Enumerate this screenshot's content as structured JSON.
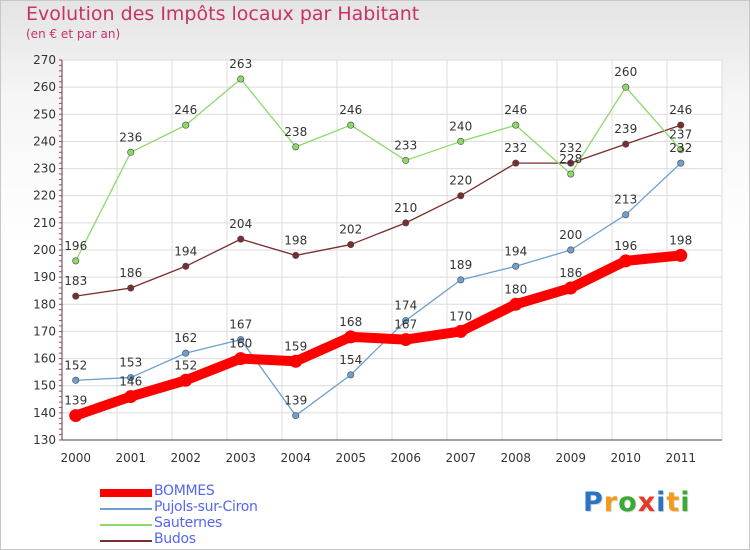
{
  "title": "Evolution des Impôts locaux par Habitant",
  "subtitle": "(en € et par an)",
  "logo": {
    "text": "Proxiti",
    "letter_colors": [
      "#2a73c7",
      "#f29a1b",
      "#3aaa35",
      "#e53a2a",
      "#2a73c7",
      "#f29a1b",
      "#3aaa35"
    ]
  },
  "chart_data": {
    "type": "line",
    "x": [
      "2000",
      "2001",
      "2002",
      "2003",
      "2004",
      "2005",
      "2006",
      "2007",
      "2008",
      "2009",
      "2010",
      "2011"
    ],
    "ylim": [
      130,
      270
    ],
    "yticks": [
      "130",
      "140",
      "150",
      "160",
      "170",
      "180",
      "190",
      "200",
      "210",
      "220",
      "230",
      "240",
      "250",
      "260",
      "270"
    ],
    "grid": true,
    "legend_position": "bottom-left",
    "series": [
      {
        "name": "BOMMES",
        "color": "#ff0000",
        "values": [
          139,
          146,
          152,
          160,
          159,
          168,
          167,
          170,
          180,
          186,
          196,
          198
        ],
        "labels": [
          "139",
          "146",
          "152",
          "160",
          "159",
          "168",
          "167",
          "170",
          "180",
          "186",
          "196",
          "198"
        ]
      },
      {
        "name": "Pujols-sur-Ciron",
        "color": "#6f9fd0",
        "values": [
          152,
          153,
          162,
          167,
          139,
          154,
          174,
          189,
          194,
          200,
          213,
          232
        ],
        "labels": [
          "152",
          "153",
          "162",
          "167",
          "139",
          "154",
          "174",
          "189",
          "194",
          "200",
          "213",
          "232"
        ]
      },
      {
        "name": "Sauternes",
        "color": "#8ed86a",
        "values": [
          196,
          236,
          246,
          263,
          238,
          246,
          233,
          240,
          246,
          228,
          260,
          237
        ],
        "labels": [
          "196",
          "236",
          "246",
          "263",
          "238",
          "246",
          "233",
          "240",
          "246",
          "228",
          "260",
          "237"
        ]
      },
      {
        "name": "Budos",
        "color": "#7a2e2e",
        "values": [
          183,
          186,
          194,
          204,
          198,
          202,
          210,
          220,
          232,
          232,
          239,
          246
        ],
        "labels": [
          "183",
          "186",
          "194",
          "204",
          "198",
          "202",
          "210",
          "220",
          "232",
          "232",
          "239",
          "246"
        ]
      }
    ]
  }
}
